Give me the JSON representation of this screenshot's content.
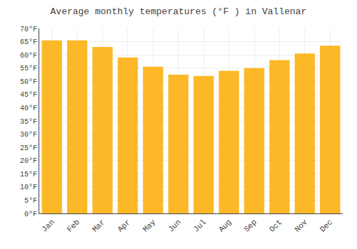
{
  "chart_data": {
    "type": "bar",
    "title": "Average monthly temperatures (°F ) in Vallenar",
    "categories": [
      "Jan",
      "Feb",
      "Mar",
      "Apr",
      "May",
      "Jun",
      "Jul",
      "Aug",
      "Sep",
      "Oct",
      "Nov",
      "Dec"
    ],
    "values": [
      65.5,
      65.5,
      63.0,
      59.0,
      55.5,
      52.5,
      52.0,
      54.0,
      55.0,
      58.0,
      60.5,
      63.5
    ],
    "color": "#FDB827",
    "ylim": [
      0,
      70
    ],
    "yticks": [
      {
        "value": 0,
        "label": "0°F"
      },
      {
        "value": 5,
        "label": "5°F"
      },
      {
        "value": 10,
        "label": "10°F"
      },
      {
        "value": 15,
        "label": "15°F"
      },
      {
        "value": 20,
        "label": "20°F"
      },
      {
        "value": 25,
        "label": "25°F"
      },
      {
        "value": 30,
        "label": "30°F"
      },
      {
        "value": 35,
        "label": "35°F"
      },
      {
        "value": 40,
        "label": "40°F"
      },
      {
        "value": 45,
        "label": "45°F"
      },
      {
        "value": 50,
        "label": "50°F"
      },
      {
        "value": 55,
        "label": "55°F"
      },
      {
        "value": 60,
        "label": "60°F"
      },
      {
        "value": 65,
        "label": "65°F"
      },
      {
        "value": 70,
        "label": "70°F"
      }
    ],
    "grid": true
  }
}
